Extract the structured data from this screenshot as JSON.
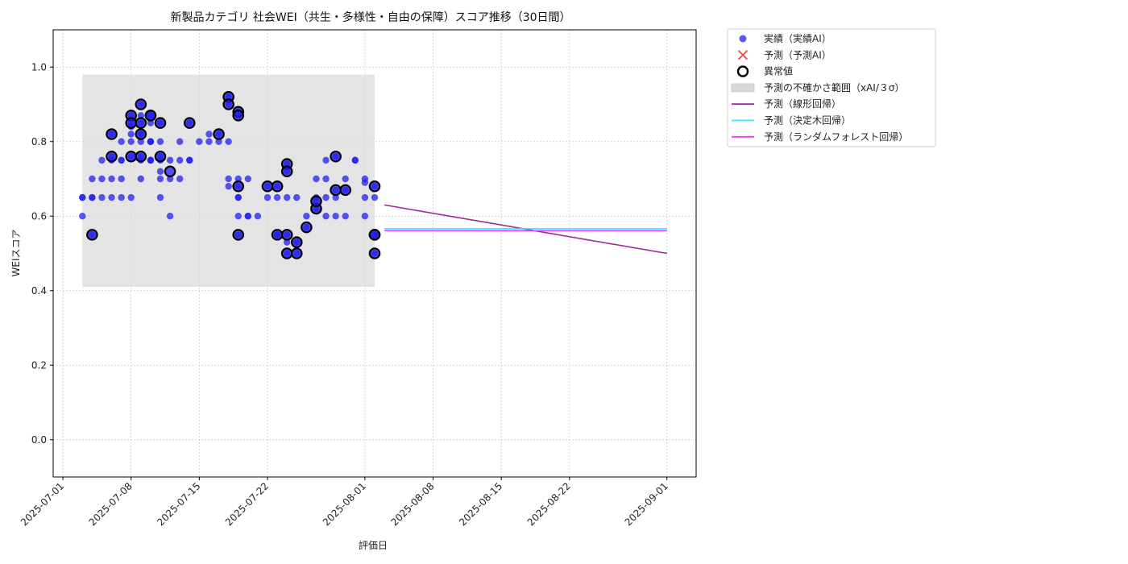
{
  "chart_data": {
    "type": "scatter",
    "title": "新製品カテゴリ 社会WEI（共生・多様性・自由の保障）スコア推移（30日間）",
    "xlabel": "評価日",
    "ylabel": "WEIスコア",
    "xlim": [
      "2025-06-30",
      "2025-09-04"
    ],
    "ylim": [
      -0.1,
      1.1
    ],
    "x_ticks": [
      "2025-07-01",
      "2025-07-08",
      "2025-07-15",
      "2025-07-22",
      "2025-08-01",
      "2025-08-08",
      "2025-08-15",
      "2025-08-22",
      "2025-09-01"
    ],
    "y_ticks": [
      "0.0",
      "0.2",
      "0.4",
      "0.6",
      "0.8",
      "1.0"
    ],
    "grid": true,
    "legend_position": "outside-top-right",
    "colors": {
      "actual": "#2222ee",
      "predicted_marker": "#ff4444",
      "outlier_edge": "#000000",
      "uncertainty_band": "#d9d9d9",
      "linear": "#9b2a9b",
      "tree": "#22eeff",
      "forest": "#ff33ff"
    },
    "legend": [
      {
        "label": "実績（実績AI）",
        "kind": "actual"
      },
      {
        "label": "予測（予測AI）",
        "kind": "predicted"
      },
      {
        "label": "異常値",
        "kind": "outlier"
      },
      {
        "label": "予測の不確かさ範囲（xAI/３σ）",
        "kind": "band"
      },
      {
        "label": "予測（線形回帰）",
        "kind": "linear"
      },
      {
        "label": "予測（決定木回帰）",
        "kind": "tree"
      },
      {
        "label": "予測（ランダムフォレスト回帰）",
        "kind": "forest"
      }
    ],
    "uncertainty_band": {
      "x_start": "2025-07-03",
      "x_end": "2025-08-02",
      "y_low": 0.41,
      "y_high": 0.98
    },
    "series": [
      {
        "name": "実績（実績AI）",
        "points": [
          [
            "2025-07-03",
            0.65
          ],
          [
            "2025-07-03",
            0.65
          ],
          [
            "2025-07-03",
            0.6
          ],
          [
            "2025-07-04",
            0.65
          ],
          [
            "2025-07-04",
            0.65
          ],
          [
            "2025-07-04",
            0.55
          ],
          [
            "2025-07-04",
            0.7
          ],
          [
            "2025-07-05",
            0.7
          ],
          [
            "2025-07-05",
            0.65
          ],
          [
            "2025-07-05",
            0.75
          ],
          [
            "2025-07-06",
            0.7
          ],
          [
            "2025-07-06",
            0.65
          ],
          [
            "2025-07-06",
            0.76
          ],
          [
            "2025-07-06",
            0.82
          ],
          [
            "2025-07-06",
            0.75
          ],
          [
            "2025-07-07",
            0.75
          ],
          [
            "2025-07-07",
            0.8
          ],
          [
            "2025-07-07",
            0.75
          ],
          [
            "2025-07-07",
            0.7
          ],
          [
            "2025-07-07",
            0.65
          ],
          [
            "2025-07-08",
            0.65
          ],
          [
            "2025-07-08",
            0.76
          ],
          [
            "2025-07-08",
            0.8
          ],
          [
            "2025-07-08",
            0.84
          ],
          [
            "2025-07-08",
            0.87
          ],
          [
            "2025-07-08",
            0.85
          ],
          [
            "2025-07-08",
            0.82
          ],
          [
            "2025-07-09",
            0.8
          ],
          [
            "2025-07-09",
            0.82
          ],
          [
            "2025-07-09",
            0.82
          ],
          [
            "2025-07-09",
            0.7
          ],
          [
            "2025-07-09",
            0.76
          ],
          [
            "2025-07-09",
            0.75
          ],
          [
            "2025-07-09",
            0.85
          ],
          [
            "2025-07-09",
            0.9
          ],
          [
            "2025-07-09",
            0.87
          ],
          [
            "2025-07-10",
            0.85
          ],
          [
            "2025-07-10",
            0.8
          ],
          [
            "2025-07-10",
            0.75
          ],
          [
            "2025-07-10",
            0.75
          ],
          [
            "2025-07-10",
            0.87
          ],
          [
            "2025-07-10",
            0.8
          ],
          [
            "2025-07-10",
            0.75
          ],
          [
            "2025-07-10",
            0.8
          ],
          [
            "2025-07-11",
            0.85
          ],
          [
            "2025-07-11",
            0.8
          ],
          [
            "2025-07-11",
            0.7
          ],
          [
            "2025-07-11",
            0.65
          ],
          [
            "2025-07-11",
            0.76
          ],
          [
            "2025-07-11",
            0.75
          ],
          [
            "2025-07-11",
            0.72
          ],
          [
            "2025-07-12",
            0.6
          ],
          [
            "2025-07-12",
            0.7
          ],
          [
            "2025-07-12",
            0.75
          ],
          [
            "2025-07-13",
            0.8
          ],
          [
            "2025-07-13",
            0.75
          ],
          [
            "2025-07-13",
            0.7
          ],
          [
            "2025-07-14",
            0.75
          ],
          [
            "2025-07-14",
            0.85
          ],
          [
            "2025-07-14",
            0.75
          ],
          [
            "2025-07-15",
            0.8
          ],
          [
            "2025-07-16",
            0.8
          ],
          [
            "2025-07-16",
            0.82
          ],
          [
            "2025-07-17",
            0.8
          ],
          [
            "2025-07-17",
            0.82
          ],
          [
            "2025-07-18",
            0.92
          ],
          [
            "2025-07-18",
            0.9
          ],
          [
            "2025-07-18",
            0.8
          ],
          [
            "2025-07-18",
            0.7
          ],
          [
            "2025-07-18",
            0.68
          ],
          [
            "2025-07-19",
            0.65
          ],
          [
            "2025-07-19",
            0.6
          ],
          [
            "2025-07-19",
            0.55
          ],
          [
            "2025-07-19",
            0.87
          ],
          [
            "2025-07-19",
            0.88
          ],
          [
            "2025-07-19",
            0.7
          ],
          [
            "2025-07-19",
            0.68
          ],
          [
            "2025-07-19",
            0.65
          ],
          [
            "2025-07-20",
            0.6
          ],
          [
            "2025-07-20",
            0.7
          ],
          [
            "2025-07-20",
            0.6
          ],
          [
            "2025-07-21",
            0.6
          ],
          [
            "2025-07-22",
            0.68
          ],
          [
            "2025-07-22",
            0.65
          ],
          [
            "2025-07-23",
            0.65
          ],
          [
            "2025-07-23",
            0.68
          ],
          [
            "2025-07-23",
            0.55
          ],
          [
            "2025-07-23",
            0.55
          ],
          [
            "2025-07-24",
            0.55
          ],
          [
            "2025-07-24",
            0.5
          ],
          [
            "2025-07-24",
            0.65
          ],
          [
            "2025-07-24",
            0.74
          ],
          [
            "2025-07-24",
            0.72
          ],
          [
            "2025-07-24",
            0.53
          ],
          [
            "2025-07-25",
            0.65
          ],
          [
            "2025-07-25",
            0.53
          ],
          [
            "2025-07-25",
            0.5
          ],
          [
            "2025-07-26",
            0.57
          ],
          [
            "2025-07-26",
            0.6
          ],
          [
            "2025-07-27",
            0.62
          ],
          [
            "2025-07-27",
            0.64
          ],
          [
            "2025-07-27",
            0.7
          ],
          [
            "2025-07-27",
            0.65
          ],
          [
            "2025-07-28",
            0.75
          ],
          [
            "2025-07-28",
            0.7
          ],
          [
            "2025-07-28",
            0.6
          ],
          [
            "2025-07-28",
            0.65
          ],
          [
            "2025-07-29",
            0.76
          ],
          [
            "2025-07-29",
            0.67
          ],
          [
            "2025-07-29",
            0.65
          ],
          [
            "2025-07-29",
            0.6
          ],
          [
            "2025-07-30",
            0.67
          ],
          [
            "2025-07-30",
            0.7
          ],
          [
            "2025-07-30",
            0.6
          ],
          [
            "2025-07-31",
            0.75
          ],
          [
            "2025-07-31",
            0.75
          ],
          [
            "2025-08-01",
            0.7
          ],
          [
            "2025-08-01",
            0.65
          ],
          [
            "2025-08-01",
            0.6
          ],
          [
            "2025-08-01",
            0.69
          ],
          [
            "2025-08-02",
            0.68
          ],
          [
            "2025-08-02",
            0.65
          ],
          [
            "2025-08-02",
            0.55
          ],
          [
            "2025-08-02",
            0.55
          ],
          [
            "2025-08-02",
            0.5
          ]
        ]
      },
      {
        "name": "異常値",
        "points": [
          [
            "2025-07-04",
            0.55
          ],
          [
            "2025-07-06",
            0.82
          ],
          [
            "2025-07-06",
            0.76
          ],
          [
            "2025-07-08",
            0.76
          ],
          [
            "2025-07-08",
            0.87
          ],
          [
            "2025-07-08",
            0.85
          ],
          [
            "2025-07-09",
            0.82
          ],
          [
            "2025-07-09",
            0.76
          ],
          [
            "2025-07-09",
            0.9
          ],
          [
            "2025-07-09",
            0.85
          ],
          [
            "2025-07-10",
            0.87
          ],
          [
            "2025-07-10",
            0.87
          ],
          [
            "2025-07-11",
            0.85
          ],
          [
            "2025-07-11",
            0.76
          ],
          [
            "2025-07-12",
            0.72
          ],
          [
            "2025-07-14",
            0.85
          ],
          [
            "2025-07-17",
            0.82
          ],
          [
            "2025-07-18",
            0.92
          ],
          [
            "2025-07-18",
            0.9
          ],
          [
            "2025-07-19",
            0.88
          ],
          [
            "2025-07-19",
            0.87
          ],
          [
            "2025-07-19",
            0.68
          ],
          [
            "2025-07-19",
            0.55
          ],
          [
            "2025-07-22",
            0.68
          ],
          [
            "2025-07-23",
            0.68
          ],
          [
            "2025-07-23",
            0.55
          ],
          [
            "2025-07-24",
            0.55
          ],
          [
            "2025-07-24",
            0.5
          ],
          [
            "2025-07-24",
            0.74
          ],
          [
            "2025-07-24",
            0.72
          ],
          [
            "2025-07-25",
            0.53
          ],
          [
            "2025-07-25",
            0.5
          ],
          [
            "2025-07-26",
            0.57
          ],
          [
            "2025-07-27",
            0.62
          ],
          [
            "2025-07-27",
            0.64
          ],
          [
            "2025-07-29",
            0.76
          ],
          [
            "2025-07-29",
            0.67
          ],
          [
            "2025-07-30",
            0.67
          ],
          [
            "2025-08-02",
            0.68
          ],
          [
            "2025-08-02",
            0.55
          ],
          [
            "2025-08-02",
            0.55
          ],
          [
            "2025-08-02",
            0.5
          ]
        ]
      },
      {
        "name": "予測（線形回帰）",
        "points": [
          [
            "2025-08-03",
            0.63
          ],
          [
            "2025-09-01",
            0.5
          ]
        ]
      },
      {
        "name": "予測（決定木回帰）",
        "points": [
          [
            "2025-08-03",
            0.566
          ],
          [
            "2025-09-01",
            0.566
          ]
        ]
      },
      {
        "name": "予測（ランダムフォレスト回帰）",
        "points": [
          [
            "2025-08-03",
            0.561
          ],
          [
            "2025-09-01",
            0.561
          ]
        ]
      }
    ]
  }
}
